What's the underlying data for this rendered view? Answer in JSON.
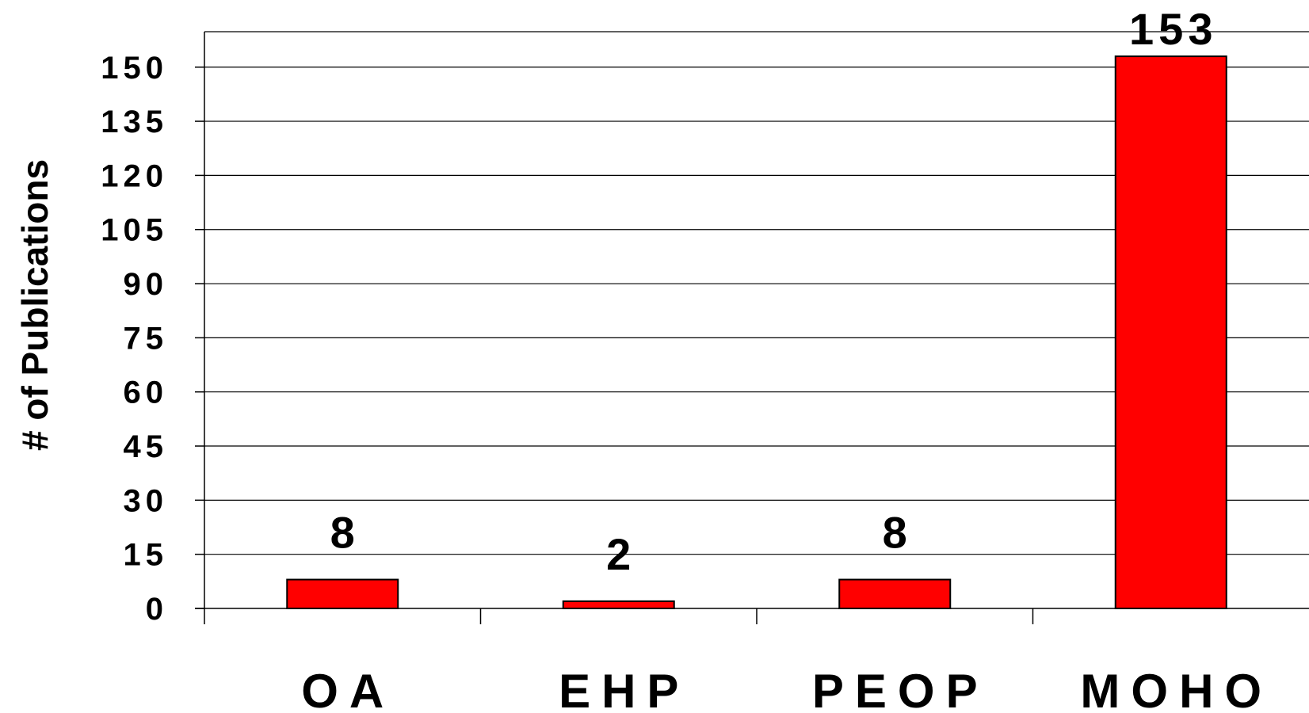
{
  "chart_data": {
    "type": "bar",
    "title": "",
    "xlabel": "",
    "ylabel": "# of Publications",
    "categories": [
      "OA",
      "EHP",
      "PEOP",
      "MOHO"
    ],
    "values": [
      8,
      2,
      8,
      153
    ],
    "data_labels": [
      "8",
      "2",
      "8",
      "153"
    ],
    "ylim": [
      0,
      160
    ],
    "yticks": [
      0,
      15,
      30,
      45,
      60,
      75,
      90,
      105,
      120,
      135,
      150
    ],
    "grid": true,
    "legend": "none",
    "bar_color": "#ff0000"
  }
}
